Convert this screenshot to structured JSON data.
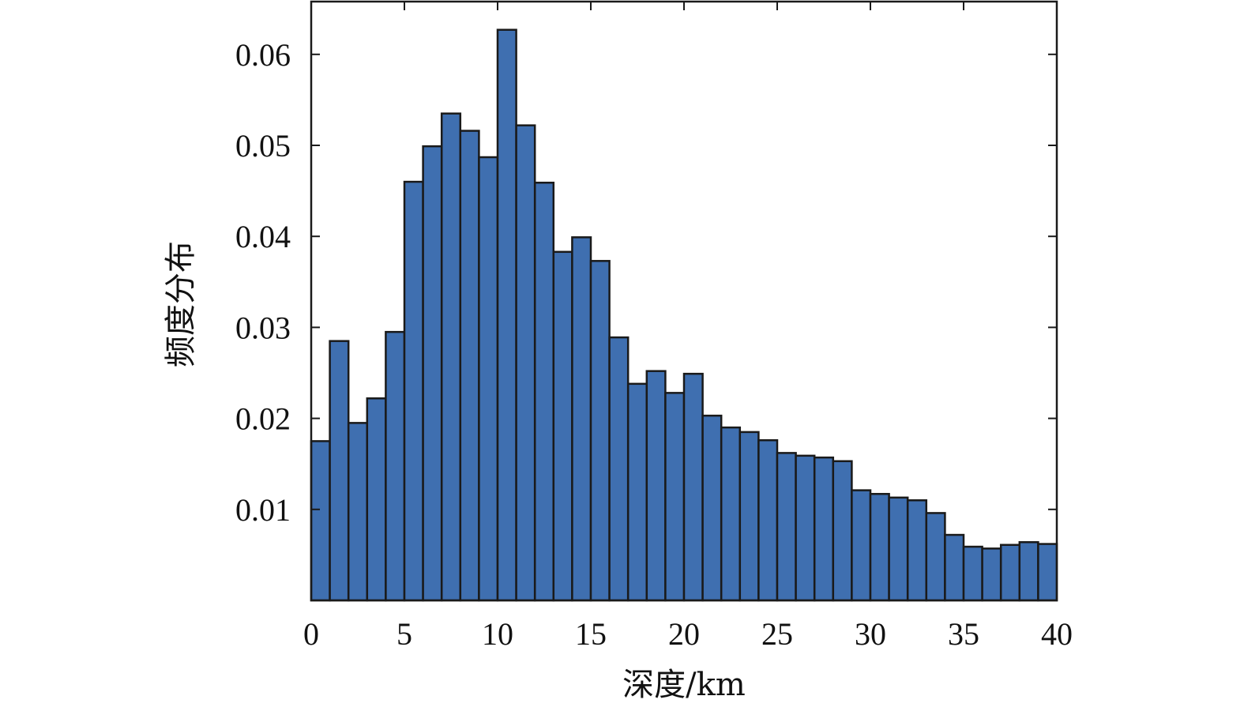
{
  "chart_data": {
    "type": "bar",
    "xlabel": "深度/km",
    "ylabel": "频度分布",
    "xlim": [
      0,
      40
    ],
    "ylim": [
      0,
      0.0658
    ],
    "grid": false,
    "legend": "none",
    "bar_color": "#3f6fb0",
    "edge_color": "#1a1a1a",
    "bin_width": 1,
    "bin_starts": [
      0,
      1,
      2,
      3,
      4,
      5,
      6,
      7,
      8,
      9,
      10,
      11,
      12,
      13,
      14,
      15,
      16,
      17,
      18,
      19,
      20,
      21,
      22,
      23,
      24,
      25,
      26,
      27,
      28,
      29,
      30,
      31,
      32,
      33,
      34,
      35,
      36,
      37,
      38,
      39
    ],
    "values": [
      0.0175,
      0.0285,
      0.0195,
      0.0222,
      0.0295,
      0.046,
      0.0499,
      0.0535,
      0.0516,
      0.0487,
      0.0627,
      0.0522,
      0.0459,
      0.0383,
      0.0399,
      0.0373,
      0.0289,
      0.0238,
      0.0252,
      0.0228,
      0.0249,
      0.0203,
      0.019,
      0.0185,
      0.0176,
      0.0162,
      0.0159,
      0.0157,
      0.0153,
      0.0121,
      0.0117,
      0.0113,
      0.011,
      0.0096,
      0.0072,
      0.0059,
      0.0057,
      0.0061,
      0.0064,
      0.0062
    ],
    "x_ticks": [
      0,
      5,
      10,
      15,
      20,
      25,
      30,
      35,
      40
    ],
    "x_tick_labels": [
      "0",
      "5",
      "10",
      "15",
      "20",
      "25",
      "30",
      "35",
      "40"
    ],
    "y_ticks": [
      0.01,
      0.02,
      0.03,
      0.04,
      0.05,
      0.06
    ],
    "y_tick_labels": [
      "0.01",
      "0.02",
      "0.03",
      "0.04",
      "0.05",
      "0.06"
    ]
  }
}
